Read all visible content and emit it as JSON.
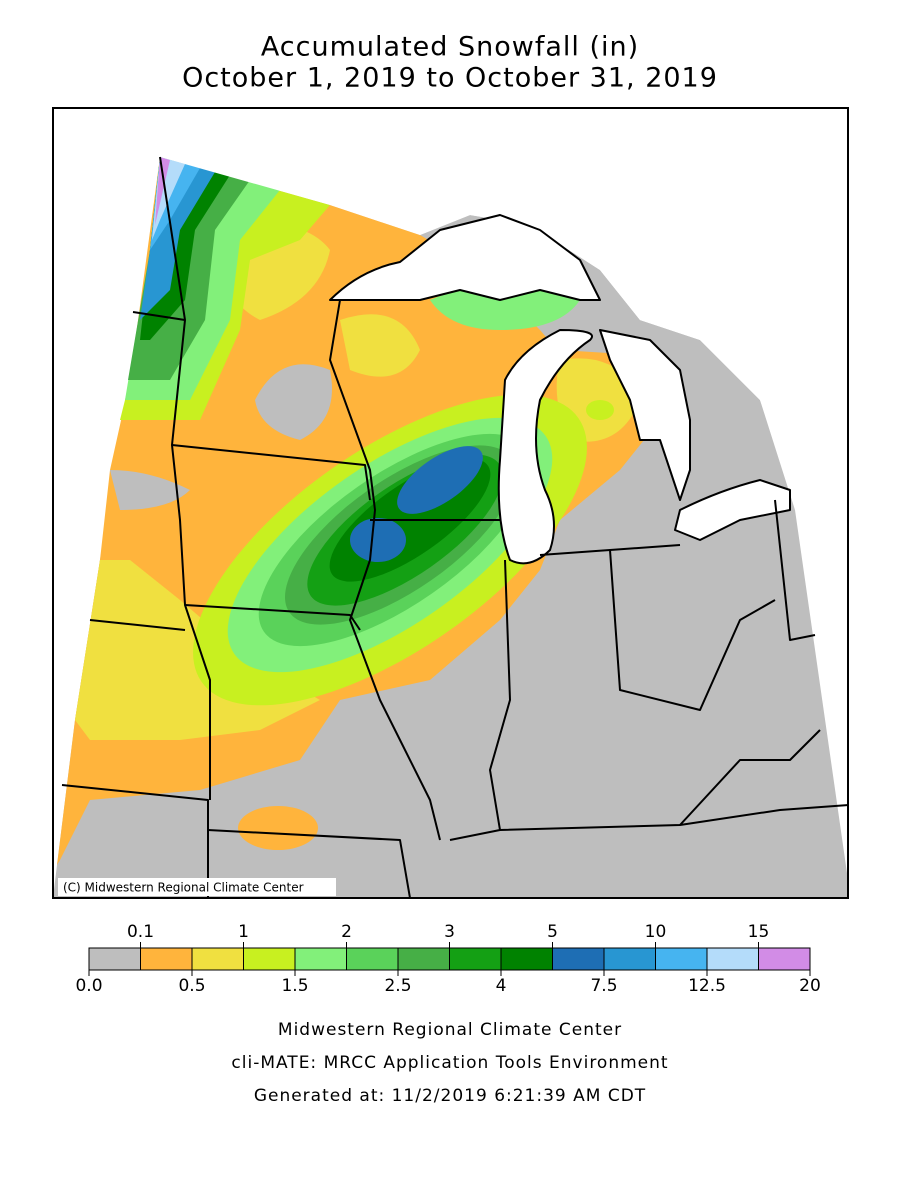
{
  "title": {
    "line1": "Accumulated Snowfall (in)",
    "line2": "October 1, 2019 to October 31, 2019"
  },
  "map": {
    "credit": "(C) Midwestern Regional Climate Center"
  },
  "legend": {
    "ticks": [
      {
        "value": 0,
        "label": "0.0"
      },
      0.1,
      0.5,
      1,
      1.5,
      2,
      2.5,
      3,
      4,
      5,
      7.5,
      10,
      12.5,
      15,
      20
    ],
    "colors": [
      "#bebebe",
      "#ffb43c",
      "#f0e040",
      "#c8f020",
      "#82f07a",
      "#5ad25a",
      "#46af46",
      "#14a014",
      "#008200",
      "#1e6eb4",
      "#2896d2",
      "#46b4f0",
      "#b4dcfa",
      "#d28ce6"
    ]
  },
  "footer": {
    "line1": "Midwestern Regional Climate Center",
    "line2": "cli-MATE: MRCC Application Tools Environment",
    "line3": "Generated at: 11/2/2019 6:21:39 AM CDT"
  }
}
